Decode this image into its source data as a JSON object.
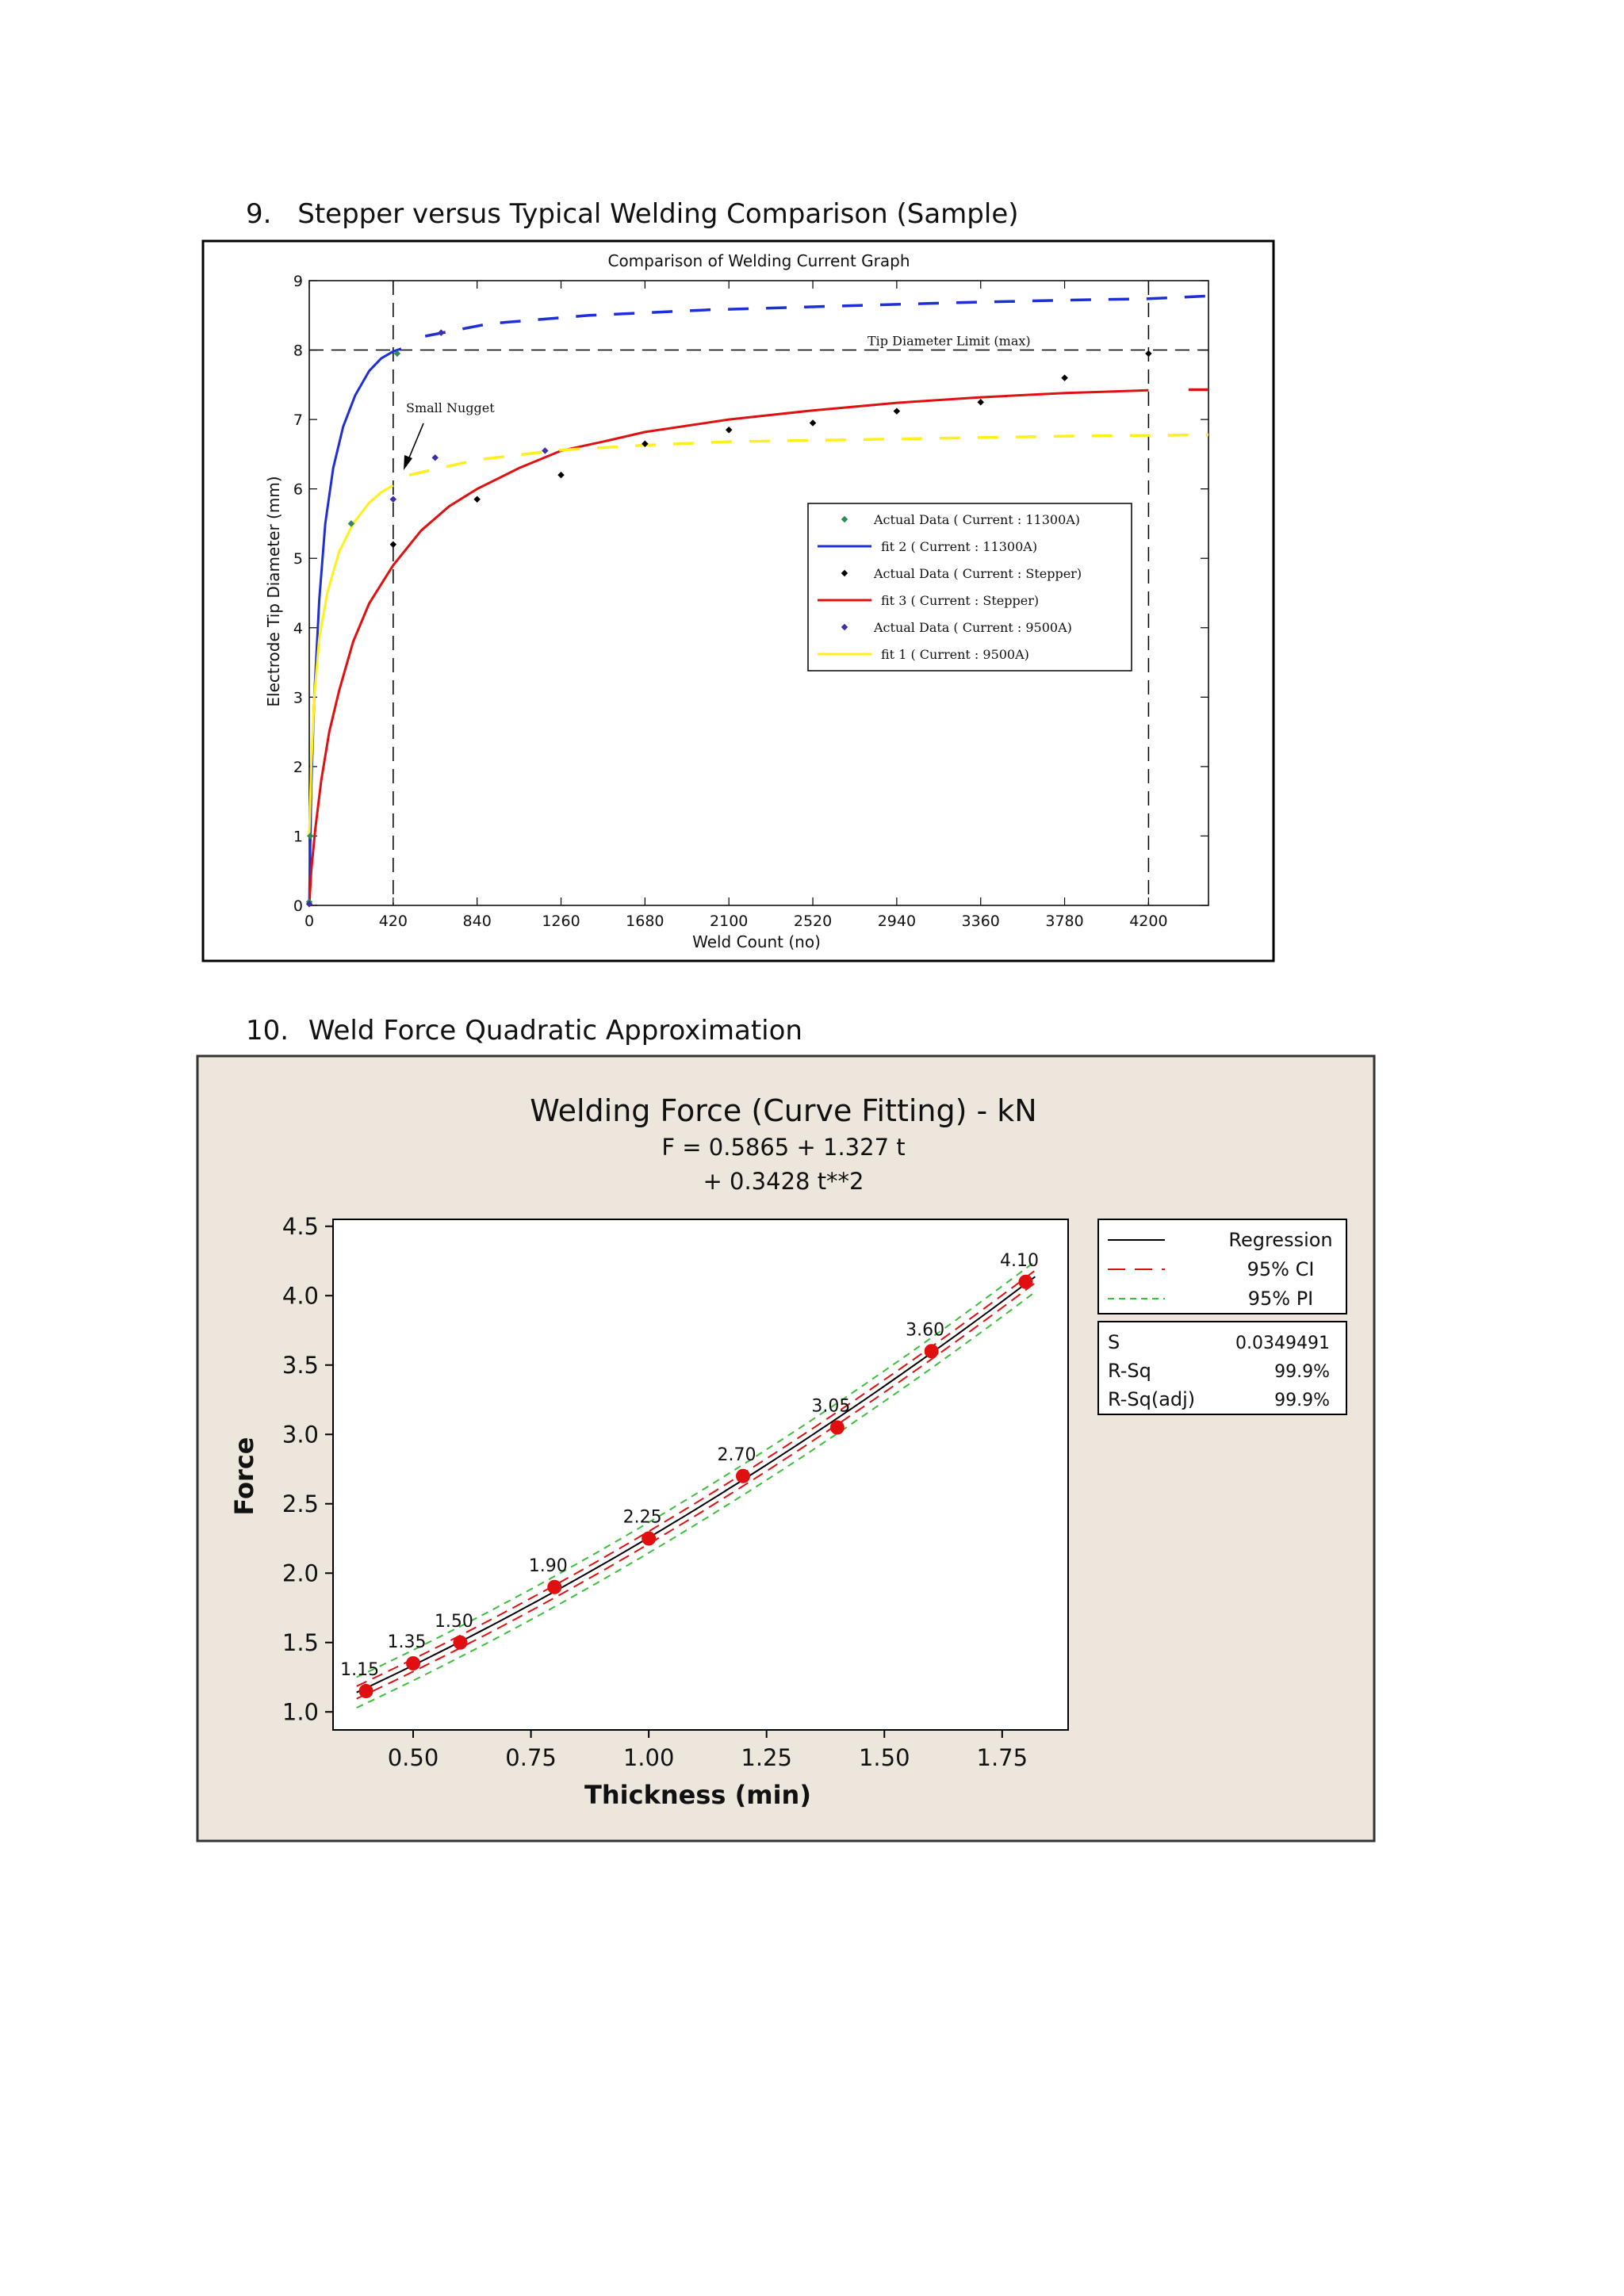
{
  "headings": {
    "h9": {
      "num": "9.",
      "text": "Stepper versus Typical Welding Comparison (Sample)"
    },
    "h10": {
      "num": "10.",
      "text": "Weld Force Quadratic Approximation"
    }
  },
  "chart_data": [
    {
      "type": "line",
      "title": "Comparison of Welding Current Graph",
      "xlabel": "Weld Count (no)",
      "ylabel": "Electrode Tip Diameter (mm)",
      "xlim": [
        0,
        4500
      ],
      "ylim": [
        0,
        9
      ],
      "xticks": [
        0,
        420,
        840,
        1260,
        1680,
        2100,
        2520,
        2940,
        3360,
        3780,
        4200
      ],
      "yticks": [
        0,
        1,
        2,
        3,
        4,
        5,
        6,
        7,
        8,
        9
      ],
      "annotations": {
        "limit_label": "Tip Diameter Limit (max)",
        "limit_value": 8,
        "small_nugget": "Small Nugget"
      },
      "vlines": [
        420,
        4200
      ],
      "legend": {
        "position": "center-right",
        "entries": [
          {
            "label": "Actual Data ( Current : 11300A)",
            "kind": "marker",
            "color": "#2e8b57"
          },
          {
            "label": "fit 2 ( Current : 11300A)",
            "kind": "line",
            "color": "#1f2fd6"
          },
          {
            "label": "Actual Data ( Current : Stepper)",
            "kind": "marker",
            "color": "#000000"
          },
          {
            "label": "fit 3 ( Current : Stepper)",
            "kind": "line",
            "color": "#e01010"
          },
          {
            "label": "Actual Data ( Current : 9500A)",
            "kind": "marker",
            "color": "#3a2fa8"
          },
          {
            "label": "fit 1 ( Current : 9500A)",
            "kind": "line",
            "color": "#ffef1a"
          }
        ]
      },
      "series": [
        {
          "name": "fit 2 ( Current : 11300A)",
          "color": "#1f2fd6",
          "solid": [
            [
              0,
              0
            ],
            [
              10,
              1.7
            ],
            [
              25,
              3.0
            ],
            [
              50,
              4.4
            ],
            [
              80,
              5.5
            ],
            [
              120,
              6.3
            ],
            [
              170,
              6.9
            ],
            [
              230,
              7.35
            ],
            [
              300,
              7.7
            ],
            [
              360,
              7.88
            ],
            [
              420,
              7.98
            ],
            [
              460,
              8.02
            ]
          ],
          "dashed": [
            [
              580,
              8.2
            ],
            [
              900,
              8.38
            ],
            [
              1400,
              8.5
            ],
            [
              2000,
              8.58
            ],
            [
              2600,
              8.63
            ],
            [
              3200,
              8.68
            ],
            [
              3800,
              8.72
            ],
            [
              4200,
              8.74
            ],
            [
              4500,
              8.78
            ]
          ]
        },
        {
          "name": "fit 3 ( Current : Stepper)",
          "color": "#e01010",
          "solid": [
            [
              0,
              0
            ],
            [
              10,
              0.5
            ],
            [
              30,
              1.1
            ],
            [
              60,
              1.8
            ],
            [
              100,
              2.5
            ],
            [
              150,
              3.1
            ],
            [
              220,
              3.8
            ],
            [
              300,
              4.35
            ],
            [
              420,
              4.9
            ],
            [
              560,
              5.4
            ],
            [
              700,
              5.75
            ],
            [
              840,
              6.0
            ],
            [
              1050,
              6.3
            ],
            [
              1260,
              6.55
            ],
            [
              1500,
              6.7
            ],
            [
              1680,
              6.82
            ],
            [
              2100,
              7.0
            ],
            [
              2520,
              7.13
            ],
            [
              2940,
              7.24
            ],
            [
              3360,
              7.32
            ],
            [
              3780,
              7.38
            ],
            [
              4200,
              7.42
            ]
          ],
          "dashed": [
            [
              4400,
              7.43
            ],
            [
              4500,
              7.43
            ]
          ]
        },
        {
          "name": "fit 1 ( Current : 9500A)",
          "color": "#ffef1a",
          "solid": [
            [
              0,
              1.0
            ],
            [
              10,
              2.0
            ],
            [
              25,
              3.0
            ],
            [
              50,
              3.85
            ],
            [
              90,
              4.5
            ],
            [
              150,
              5.1
            ],
            [
              220,
              5.5
            ],
            [
              300,
              5.8
            ],
            [
              360,
              5.95
            ],
            [
              420,
              6.05
            ]
          ],
          "dashed": [
            [
              500,
              6.2
            ],
            [
              840,
              6.42
            ],
            [
              1260,
              6.56
            ],
            [
              1680,
              6.63
            ],
            [
              2100,
              6.68
            ],
            [
              2520,
              6.7
            ],
            [
              2940,
              6.72
            ],
            [
              3360,
              6.74
            ],
            [
              3780,
              6.76
            ],
            [
              4200,
              6.77
            ],
            [
              4500,
              6.78
            ]
          ]
        }
      ],
      "points": [
        {
          "series": "Actual Data ( Current : 11300A)",
          "color": "#2e8b57",
          "values": [
            [
              0,
              0.05
            ],
            [
              5,
              1.0
            ],
            [
              210,
              5.5
            ],
            [
              440,
              7.95
            ]
          ]
        },
        {
          "series": "Actual Data ( Current : Stepper)",
          "color": "#000000",
          "values": [
            [
              420,
              5.2
            ],
            [
              840,
              5.85
            ],
            [
              1260,
              6.2
            ],
            [
              1680,
              6.65
            ],
            [
              2100,
              6.85
            ],
            [
              2520,
              6.95
            ],
            [
              2940,
              7.12
            ],
            [
              3360,
              7.25
            ],
            [
              3780,
              7.6
            ],
            [
              4200,
              7.95
            ]
          ]
        },
        {
          "series": "Actual Data ( Current : 9500A)",
          "color": "#3a2fa8",
          "values": [
            [
              0,
              0.02
            ],
            [
              420,
              5.85
            ],
            [
              630,
              6.45
            ],
            [
              660,
              8.25
            ],
            [
              1180,
              6.55
            ]
          ]
        }
      ]
    },
    {
      "type": "scatter",
      "title": "Welding Force (Curve Fitting) - kN",
      "equation_line1": "F =  0.5865 + 1.327 t",
      "equation_line2": "+ 0.3428 t**2",
      "xlabel": "Thickness (min)",
      "ylabel": "Force",
      "xlim": [
        0.33,
        1.89
      ],
      "ylim": [
        0.87,
        4.55
      ],
      "xticks": [
        "0.50",
        "0.75",
        "1.00",
        "1.25",
        "1.50",
        "1.75"
      ],
      "yticks": [
        "1.0",
        "1.5",
        "2.0",
        "2.5",
        "3.0",
        "3.5",
        "4.0",
        "4.5"
      ],
      "x": [
        0.4,
        0.5,
        0.6,
        0.8,
        1.0,
        1.2,
        1.4,
        1.6,
        1.8
      ],
      "y": [
        1.15,
        1.35,
        1.5,
        1.9,
        2.25,
        2.7,
        3.05,
        3.6,
        4.1
      ],
      "point_labels": [
        "1.15",
        "1.35",
        "1.50",
        "1.90",
        "2.25",
        "2.70",
        "3.05",
        "3.60",
        "4.10"
      ],
      "fit": {
        "a": 0.5865,
        "b": 1.327,
        "c": 0.3428,
        "ci": 0.045,
        "pi": 0.11
      },
      "legend": {
        "position": "right",
        "entries": [
          {
            "label": "Regression",
            "style": "solid",
            "color": "#000000"
          },
          {
            "label": "95% CI",
            "style": "dashed",
            "color": "#e01010"
          },
          {
            "label": "95% PI",
            "style": "dashed",
            "color": "#3bbf3b"
          }
        ]
      },
      "stats": [
        {
          "label": "S",
          "value": "0.0349491"
        },
        {
          "label": "R-Sq",
          "value": "99.9%"
        },
        {
          "label": "R-Sq(adj)",
          "value": "99.9%"
        }
      ],
      "colors": {
        "panel_bg": "#ede6dd",
        "point": "#e01010"
      }
    }
  ]
}
